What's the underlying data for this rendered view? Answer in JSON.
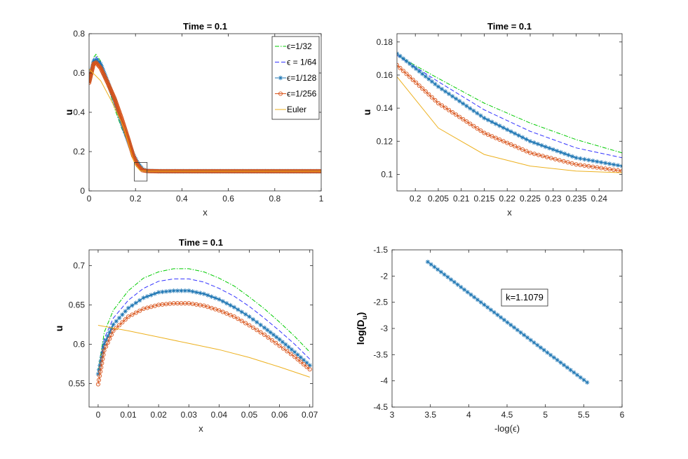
{
  "chart_data": [
    {
      "type": "line",
      "title": "Time = 0.1",
      "xlabel": "x",
      "ylabel": "u",
      "xlim": [
        0,
        1
      ],
      "ylim": [
        0,
        0.8
      ],
      "xticks": [
        0,
        0.2,
        0.4,
        0.6,
        0.8,
        1
      ],
      "xtick_labels": [
        "0",
        "0.2",
        "0.4",
        "0.6",
        "0.8",
        "1"
      ],
      "yticks": [
        0,
        0.2,
        0.4,
        0.6,
        0.8
      ],
      "ytick_labels": [
        "0",
        "0.2",
        "0.4",
        "0.6",
        "0.8"
      ],
      "legend_location": "top-right",
      "zoom_box": {
        "x": [
          0.195,
          0.25
        ],
        "y": [
          0.05,
          0.145
        ]
      },
      "series": [
        {
          "name": "ϵ=1/32",
          "color": "#00cc00",
          "style": "dashdot",
          "marker": "none",
          "x": [
            0,
            0.02,
            0.03,
            0.05,
            0.08,
            0.11,
            0.14,
            0.17,
            0.19,
            0.21,
            0.23,
            0.25,
            1.0
          ],
          "y": [
            0.56,
            0.68,
            0.695,
            0.66,
            0.54,
            0.42,
            0.32,
            0.24,
            0.19,
            0.15,
            0.117,
            0.105,
            0.1
          ]
        },
        {
          "name": "ϵ = 1/64",
          "color": "#3333ff",
          "style": "dashed",
          "marker": "none",
          "x": [
            0,
            0.02,
            0.03,
            0.05,
            0.08,
            0.11,
            0.14,
            0.17,
            0.19,
            0.21,
            0.23,
            0.25,
            1.0
          ],
          "y": [
            0.56,
            0.675,
            0.683,
            0.655,
            0.55,
            0.44,
            0.335,
            0.245,
            0.19,
            0.145,
            0.113,
            0.103,
            0.1
          ]
        },
        {
          "name": "ϵ=1/128",
          "color": "#1f77b4",
          "style": "solid",
          "marker": "star",
          "x": [
            0,
            0.02,
            0.03,
            0.05,
            0.08,
            0.11,
            0.14,
            0.17,
            0.19,
            0.21,
            0.23,
            0.25,
            0.3,
            0.4,
            0.5,
            0.6,
            0.7,
            0.8,
            0.9,
            1.0
          ],
          "y": [
            0.56,
            0.66,
            0.668,
            0.645,
            0.555,
            0.46,
            0.35,
            0.25,
            0.185,
            0.14,
            0.11,
            0.102,
            0.1,
            0.1,
            0.1,
            0.1,
            0.1,
            0.1,
            0.1,
            0.1
          ]
        },
        {
          "name": "ϵ=1/256",
          "color": "#d95319",
          "style": "solid",
          "marker": "circle",
          "x": [
            0,
            0.02,
            0.03,
            0.05,
            0.08,
            0.11,
            0.14,
            0.17,
            0.19,
            0.21,
            0.23,
            0.25,
            0.3,
            0.4,
            0.5,
            0.6,
            0.7,
            0.8,
            0.9,
            1.0
          ],
          "y": [
            0.55,
            0.648,
            0.653,
            0.625,
            0.55,
            0.47,
            0.37,
            0.26,
            0.18,
            0.13,
            0.105,
            0.101,
            0.1,
            0.1,
            0.1,
            0.1,
            0.1,
            0.1,
            0.1,
            0.1
          ]
        },
        {
          "name": "Euler",
          "color": "#edb120",
          "style": "solid",
          "marker": "none",
          "x": [
            0,
            0.05,
            0.1,
            0.15,
            0.19,
            0.2,
            0.22,
            0.25,
            1.0
          ],
          "y": [
            0.62,
            0.56,
            0.45,
            0.32,
            0.16,
            0.13,
            0.103,
            0.1,
            0.1
          ]
        }
      ]
    },
    {
      "type": "line",
      "title": "Time = 0.1",
      "xlabel": "x",
      "ylabel": "u",
      "xlim": [
        0.196,
        0.245
      ],
      "ylim": [
        0.09,
        0.185
      ],
      "xticks": [
        0.2,
        0.205,
        0.21,
        0.215,
        0.22,
        0.225,
        0.23,
        0.235,
        0.24
      ],
      "xtick_labels": [
        "0.2",
        "0.205",
        "0.21",
        "0.215",
        "0.22",
        "0.225",
        "0.23",
        "0.235",
        "0.24"
      ],
      "yticks": [
        0.1,
        0.12,
        0.14,
        0.16,
        0.18
      ],
      "ytick_labels": [
        "0.1",
        "0.12",
        "0.14",
        "0.16",
        "0.18"
      ],
      "series": [
        {
          "name": "ϵ=1/32",
          "color": "#00cc00",
          "style": "dashdot",
          "marker": "none",
          "x": [
            0.196,
            0.205,
            0.215,
            0.225,
            0.235,
            0.245
          ],
          "y": [
            0.172,
            0.158,
            0.143,
            0.131,
            0.121,
            0.113
          ]
        },
        {
          "name": "ϵ = 1/64",
          "color": "#3333ff",
          "style": "dashed",
          "marker": "none",
          "x": [
            0.196,
            0.205,
            0.215,
            0.225,
            0.235,
            0.245
          ],
          "y": [
            0.172,
            0.156,
            0.139,
            0.126,
            0.116,
            0.11
          ]
        },
        {
          "name": "ϵ=1/128",
          "color": "#1f77b4",
          "style": "solid",
          "marker": "star",
          "x": [
            0.196,
            0.205,
            0.215,
            0.225,
            0.235,
            0.245
          ],
          "y": [
            0.173,
            0.153,
            0.134,
            0.12,
            0.11,
            0.105
          ]
        },
        {
          "name": "ϵ=1/256",
          "color": "#d95319",
          "style": "solid",
          "marker": "circle",
          "x": [
            0.196,
            0.205,
            0.215,
            0.225,
            0.235,
            0.245
          ],
          "y": [
            0.166,
            0.143,
            0.125,
            0.113,
            0.106,
            0.102
          ]
        },
        {
          "name": "Euler",
          "color": "#edb120",
          "style": "solid",
          "marker": "none",
          "x": [
            0.196,
            0.205,
            0.215,
            0.225,
            0.235,
            0.245
          ],
          "y": [
            0.159,
            0.128,
            0.112,
            0.105,
            0.102,
            0.101
          ]
        }
      ]
    },
    {
      "type": "line",
      "title": "Time = 0.1",
      "xlabel": "x",
      "ylabel": "u",
      "xlim": [
        -0.003,
        0.071
      ],
      "ylim": [
        0.52,
        0.72
      ],
      "xticks": [
        0,
        0.01,
        0.02,
        0.03,
        0.04,
        0.05,
        0.06,
        0.07
      ],
      "xtick_labels": [
        "0",
        "0.01",
        "0.02",
        "0.03",
        "0.04",
        "0.05",
        "0.06",
        "0.07"
      ],
      "yticks": [
        0.55,
        0.6,
        0.65,
        0.7
      ],
      "ytick_labels": [
        "0.55",
        "0.6",
        "0.65",
        "0.7"
      ],
      "series": [
        {
          "name": "ϵ=1/32",
          "color": "#00cc00",
          "style": "dashdot",
          "marker": "none",
          "x": [
            0,
            0.002,
            0.005,
            0.01,
            0.015,
            0.02,
            0.025,
            0.03,
            0.035,
            0.04,
            0.045,
            0.05,
            0.055,
            0.06,
            0.065,
            0.07
          ],
          "y": [
            0.565,
            0.615,
            0.643,
            0.668,
            0.684,
            0.692,
            0.696,
            0.696,
            0.692,
            0.684,
            0.674,
            0.66,
            0.645,
            0.628,
            0.61,
            0.59
          ]
        },
        {
          "name": "ϵ = 1/64",
          "color": "#3333ff",
          "style": "dashed",
          "marker": "none",
          "x": [
            0,
            0.002,
            0.005,
            0.01,
            0.015,
            0.02,
            0.025,
            0.03,
            0.035,
            0.04,
            0.045,
            0.05,
            0.055,
            0.06,
            0.065,
            0.07
          ],
          "y": [
            0.563,
            0.607,
            0.633,
            0.656,
            0.671,
            0.68,
            0.683,
            0.683,
            0.679,
            0.671,
            0.661,
            0.648,
            0.633,
            0.617,
            0.6,
            0.581
          ]
        },
        {
          "name": "ϵ=1/128",
          "color": "#1f77b4",
          "style": "solid",
          "marker": "star",
          "x": [
            0,
            0.002,
            0.005,
            0.01,
            0.015,
            0.02,
            0.025,
            0.03,
            0.035,
            0.04,
            0.045,
            0.05,
            0.055,
            0.06,
            0.065,
            0.07
          ],
          "y": [
            0.562,
            0.6,
            0.625,
            0.646,
            0.659,
            0.666,
            0.668,
            0.668,
            0.664,
            0.657,
            0.647,
            0.635,
            0.621,
            0.606,
            0.59,
            0.573
          ]
        },
        {
          "name": "ϵ=1/256",
          "color": "#d95319",
          "style": "solid",
          "marker": "circle",
          "x": [
            0,
            0.002,
            0.005,
            0.01,
            0.015,
            0.02,
            0.025,
            0.03,
            0.035,
            0.04,
            0.045,
            0.05,
            0.055,
            0.06,
            0.065,
            0.07
          ],
          "y": [
            0.549,
            0.592,
            0.617,
            0.635,
            0.645,
            0.65,
            0.652,
            0.652,
            0.649,
            0.643,
            0.635,
            0.624,
            0.612,
            0.598,
            0.584,
            0.568
          ]
        },
        {
          "name": "Euler",
          "color": "#edb120",
          "style": "solid",
          "marker": "none",
          "x": [
            0,
            0.01,
            0.02,
            0.03,
            0.04,
            0.05,
            0.06,
            0.07
          ],
          "y": [
            0.624,
            0.617,
            0.609,
            0.601,
            0.593,
            0.583,
            0.571,
            0.558
          ]
        }
      ]
    },
    {
      "type": "line",
      "title": "",
      "xlabel": "-log(ϵ)",
      "ylabel_main": "log(D",
      "ylabel_sub": "u",
      "ylabel_close": ")",
      "xlim": [
        3,
        6
      ],
      "ylim": [
        -4.5,
        -1.5
      ],
      "xticks": [
        3,
        3.5,
        4,
        4.5,
        5,
        5.5,
        6
      ],
      "xtick_labels": [
        "3",
        "3.5",
        "4",
        "4.5",
        "5",
        "5.5",
        "6"
      ],
      "yticks": [
        -4.5,
        -4,
        -3.5,
        -3,
        -2.5,
        -2,
        -1.5
      ],
      "ytick_labels": [
        "-4.5",
        "-4",
        "-3.5",
        "-3",
        "-2.5",
        "-2",
        "-1.5"
      ],
      "annotation": "k=1.1079",
      "series": [
        {
          "color": "#1f77b4",
          "style": "solid",
          "marker": "star",
          "x": [
            3.466,
            4.159,
            4.852,
            5.545
          ],
          "y": [
            -1.73,
            -2.5,
            -3.27,
            -4.03
          ]
        }
      ]
    }
  ]
}
